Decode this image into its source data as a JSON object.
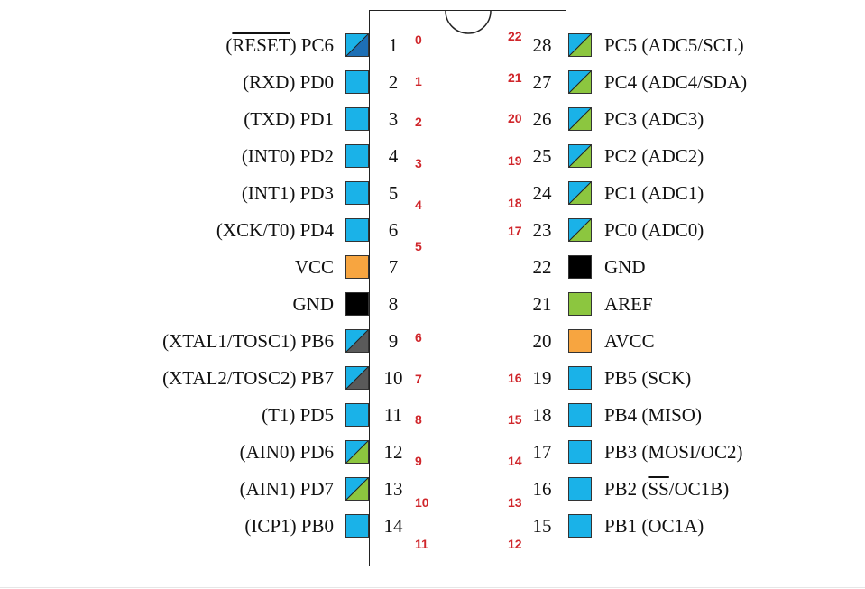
{
  "colors": {
    "blue": "#1ab2e8",
    "darkblue": "#1d6fb5",
    "green": "#8cc63f",
    "gray": "#5a5a5a",
    "orange": "#f7a540",
    "black": "#000000",
    "index_red": "#d0262b"
  },
  "left_pins": [
    {
      "label_pre": "(",
      "label_over": "RESET",
      "label_post": ") PC6",
      "pin": "1",
      "fill": "darkblue",
      "diag": "blue"
    },
    {
      "label_pre": "(RXD) PD0",
      "label_over": "",
      "label_post": "",
      "pin": "2",
      "fill": "blue",
      "diag": ""
    },
    {
      "label_pre": "(TXD) PD1",
      "label_over": "",
      "label_post": "",
      "pin": "3",
      "fill": "blue",
      "diag": ""
    },
    {
      "label_pre": "(INT0) PD2",
      "label_over": "",
      "label_post": "",
      "pin": "4",
      "fill": "blue",
      "diag": ""
    },
    {
      "label_pre": "(INT1) PD3",
      "label_over": "",
      "label_post": "",
      "pin": "5",
      "fill": "blue",
      "diag": ""
    },
    {
      "label_pre": "(XCK/T0) PD4",
      "label_over": "",
      "label_post": "",
      "pin": "6",
      "fill": "blue",
      "diag": ""
    },
    {
      "label_pre": "VCC",
      "label_over": "",
      "label_post": "",
      "pin": "7",
      "fill": "orange",
      "diag": ""
    },
    {
      "label_pre": "GND",
      "label_over": "",
      "label_post": "",
      "pin": "8",
      "fill": "black",
      "diag": ""
    },
    {
      "label_pre": "(XTAL1/TOSC1) PB6",
      "label_over": "",
      "label_post": "",
      "pin": "9",
      "fill": "gray",
      "diag": "blue"
    },
    {
      "label_pre": "(XTAL2/TOSC2) PB7",
      "label_over": "",
      "label_post": "",
      "pin": "10",
      "fill": "gray",
      "diag": "blue"
    },
    {
      "label_pre": "(T1) PD5",
      "label_over": "",
      "label_post": "",
      "pin": "11",
      "fill": "blue",
      "diag": ""
    },
    {
      "label_pre": "(AIN0) PD6",
      "label_over": "",
      "label_post": "",
      "pin": "12",
      "fill": "green",
      "diag": "blue"
    },
    {
      "label_pre": "(AIN1) PD7",
      "label_over": "",
      "label_post": "",
      "pin": "13",
      "fill": "green",
      "diag": "blue"
    },
    {
      "label_pre": "(ICP1) PB0",
      "label_over": "",
      "label_post": "",
      "pin": "14",
      "fill": "blue",
      "diag": ""
    }
  ],
  "right_pins": [
    {
      "label_pre": "PC5 (ADC5/SCL)",
      "label_over": "",
      "label_post": "",
      "pin": "28",
      "fill": "green",
      "diag": "blue"
    },
    {
      "label_pre": "PC4 (ADC4/SDA)",
      "label_over": "",
      "label_post": "",
      "pin": "27",
      "fill": "green",
      "diag": "blue"
    },
    {
      "label_pre": "PC3 (ADC3)",
      "label_over": "",
      "label_post": "",
      "pin": "26",
      "fill": "green",
      "diag": "blue"
    },
    {
      "label_pre": "PC2 (ADC2)",
      "label_over": "",
      "label_post": "",
      "pin": "25",
      "fill": "green",
      "diag": "blue"
    },
    {
      "label_pre": "PC1 (ADC1)",
      "label_over": "",
      "label_post": "",
      "pin": "24",
      "fill": "green",
      "diag": "blue"
    },
    {
      "label_pre": "PC0 (ADC0)",
      "label_over": "",
      "label_post": "",
      "pin": "23",
      "fill": "green",
      "diag": "blue"
    },
    {
      "label_pre": "GND",
      "label_over": "",
      "label_post": "",
      "pin": "22",
      "fill": "black",
      "diag": ""
    },
    {
      "label_pre": "AREF",
      "label_over": "",
      "label_post": "",
      "pin": "21",
      "fill": "green",
      "diag": ""
    },
    {
      "label_pre": "AVCC",
      "label_over": "",
      "label_post": "",
      "pin": "20",
      "fill": "orange",
      "diag": ""
    },
    {
      "label_pre": "PB5 (SCK)",
      "label_over": "",
      "label_post": "",
      "pin": "19",
      "fill": "blue",
      "diag": ""
    },
    {
      "label_pre": "PB4 (MISO)",
      "label_over": "",
      "label_post": "",
      "pin": "18",
      "fill": "blue",
      "diag": ""
    },
    {
      "label_pre": "PB3 (MOSI/OC2)",
      "label_over": "",
      "label_post": "",
      "pin": "17",
      "fill": "blue",
      "diag": ""
    },
    {
      "label_pre": "PB2 (",
      "label_over": "SS",
      "label_post": "/OC1B)",
      "pin": "16",
      "fill": "blue",
      "diag": ""
    },
    {
      "label_pre": "PB1 (OC1A)",
      "label_over": "",
      "label_post": "",
      "pin": "15",
      "fill": "blue",
      "diag": ""
    }
  ],
  "left_indices": [
    "0",
    "1",
    "2",
    "3",
    "4",
    "5",
    "6",
    "7",
    "8",
    "9",
    "10",
    "11"
  ],
  "right_indices": [
    "22",
    "21",
    "20",
    "19",
    "18",
    "17",
    "16",
    "15",
    "14",
    "13",
    "12"
  ]
}
